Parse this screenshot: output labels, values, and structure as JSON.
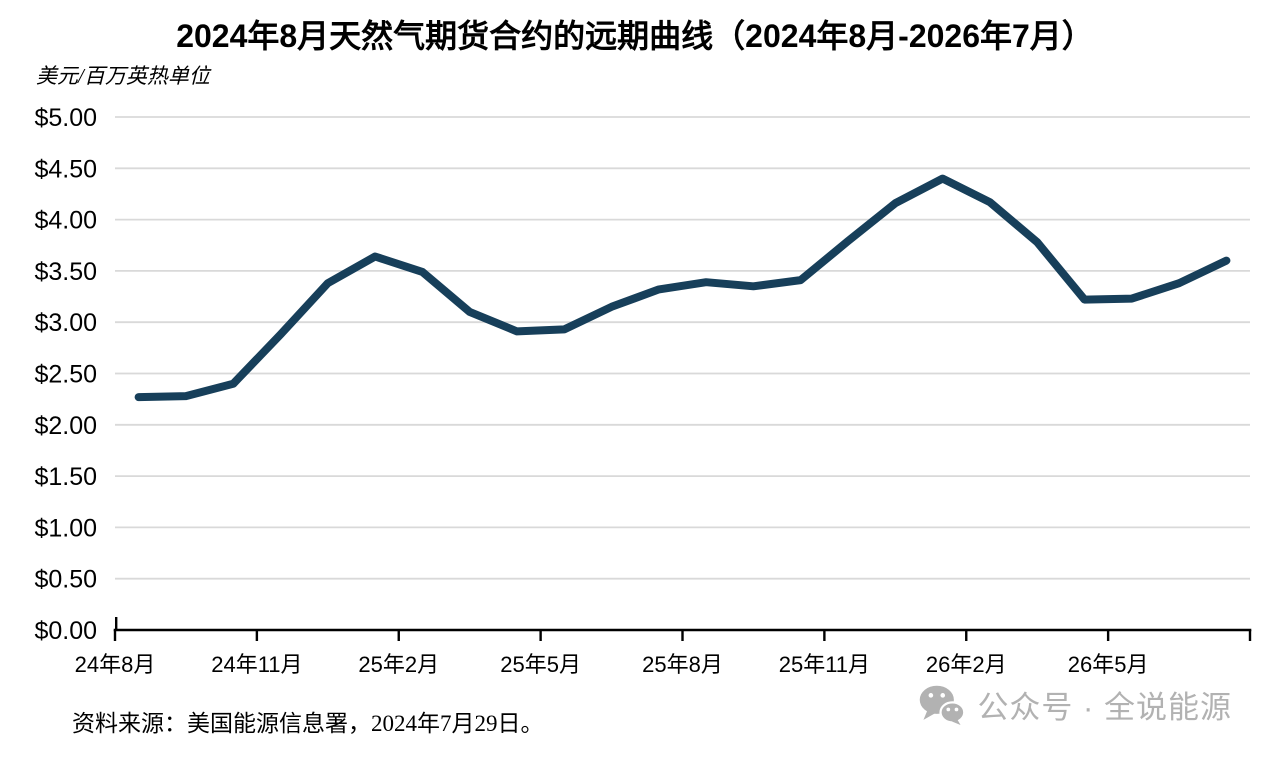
{
  "title": "2024年8月天然气期货合约的远期曲线（2024年8月-2026年7月）",
  "y_axis_unit": "美元/百万英热单位",
  "footer": {
    "source": "资料来源：美国能源信息署，2024年7月29日。",
    "watermark": "公众号 · 全说能源",
    "watermark_icon": "wechat-icon"
  },
  "chart_data": {
    "type": "line",
    "title": "2024年8月天然气期货合约的远期曲线（2024年8月-2026年7月）",
    "ylabel": "美元/百万英热单位",
    "xlabel": "",
    "x": [
      "24年8月",
      "24年9月",
      "24年10月",
      "24年11月",
      "24年12月",
      "25年1月",
      "25年2月",
      "25年3月",
      "25年4月",
      "25年5月",
      "25年6月",
      "25年7月",
      "25年8月",
      "25年9月",
      "25年10月",
      "25年11月",
      "25年12月",
      "26年1月",
      "26年2月",
      "26年3月",
      "26年4月",
      "26年5月",
      "26年6月",
      "26年7月"
    ],
    "values": [
      2.27,
      2.28,
      2.4,
      2.88,
      3.38,
      3.64,
      3.49,
      3.1,
      2.91,
      2.93,
      3.15,
      3.32,
      3.39,
      3.35,
      3.41,
      3.79,
      4.16,
      4.4,
      4.17,
      3.78,
      3.22,
      3.23,
      3.38,
      3.6
    ],
    "x_tick_labels": [
      "24年8月",
      "24年11月",
      "25年2月",
      "25年5月",
      "25年8月",
      "25年11月",
      "26年2月",
      "26年5月"
    ],
    "y_tick_labels": [
      "$0.00",
      "$0.50",
      "$1.00",
      "$1.50",
      "$2.00",
      "$2.50",
      "$3.00",
      "$3.50",
      "$4.00",
      "$4.50",
      "$5.00"
    ],
    "ylim": [
      0,
      5
    ],
    "y_tick_step": 0.5,
    "grid": true,
    "legend_position": "none",
    "line_color": "#173f5a",
    "grid_color": "#d9d9d9",
    "axis_color": "#000000"
  }
}
